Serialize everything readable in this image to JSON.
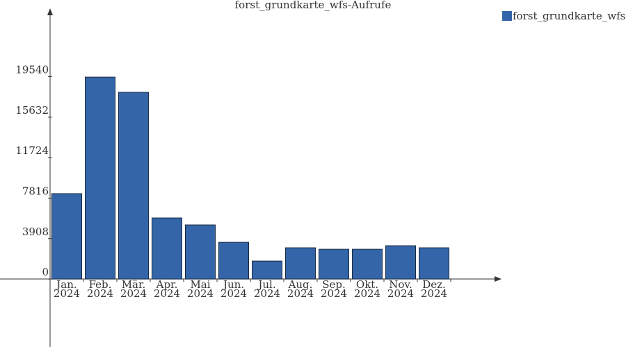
{
  "chart_data": {
    "type": "bar",
    "title": "forst_grundkarte_wfs-Aufrufe",
    "categories": [
      [
        "Jan.",
        "2024"
      ],
      [
        "Feb.",
        "2024"
      ],
      [
        "Mär.",
        "2024"
      ],
      [
        "Apr.",
        "2024"
      ],
      [
        "Mai",
        "2024"
      ],
      [
        "Jun.",
        "2024"
      ],
      [
        "Jul.",
        "2024"
      ],
      [
        "Aug.",
        "2024"
      ],
      [
        "Sep.",
        "2024"
      ],
      [
        "Okt.",
        "2024"
      ],
      [
        "Nov.",
        "2024"
      ],
      [
        "Dez.",
        "2024"
      ]
    ],
    "series": [
      {
        "name": "forst_grundkarte_wfs",
        "color": "#3465a8",
        "values": [
          8250,
          19500,
          18030,
          5900,
          5230,
          3550,
          1740,
          3020,
          2880,
          2880,
          3220,
          3020
        ]
      }
    ],
    "ylim": [
      -6560,
      25940
    ],
    "yticks": [
      0,
      3908,
      7816,
      11724,
      15632,
      19540
    ]
  }
}
